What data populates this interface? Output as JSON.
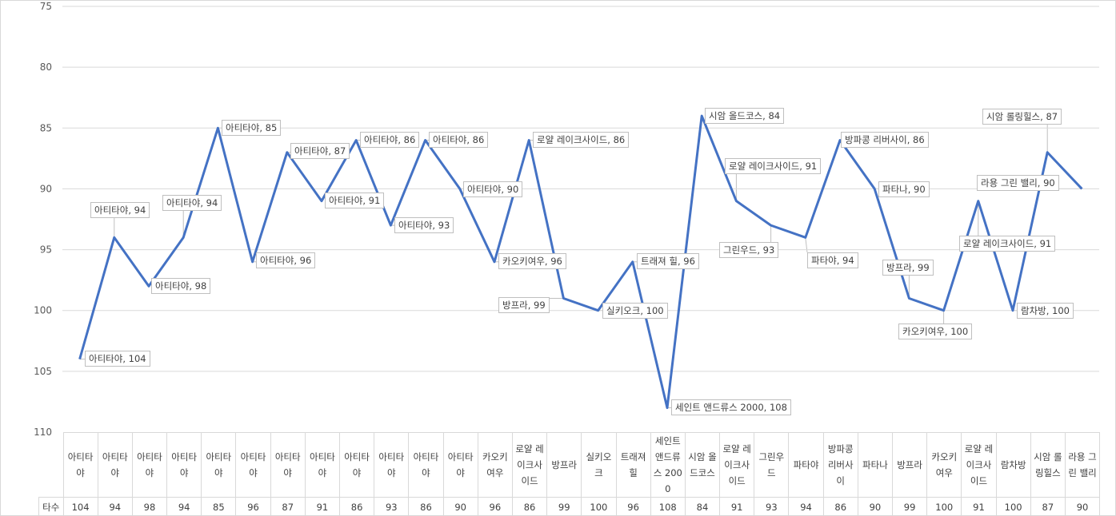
{
  "chart_data": {
    "type": "line",
    "title": "",
    "y_axis": {
      "min": 75,
      "max": 110,
      "step": 5,
      "reversed": true,
      "ticks": [
        75,
        80,
        85,
        90,
        95,
        100,
        105,
        110
      ]
    },
    "grid": true,
    "line_color": "#4472c4",
    "categories": [
      "아티타야",
      "아티타야",
      "아티타야",
      "아티타야",
      "아티타야",
      "아티타야",
      "아티타야",
      "아티타야",
      "아티타야",
      "아티타야",
      "아티타야",
      "아티타야",
      "카오키여우",
      "로얄 레이크사이드",
      "방프라",
      "실키오크",
      "트래져 힐",
      "세인트 앤드류스 2000",
      "시암 올드코스",
      "로얄 레이크사이드",
      "그린우드",
      "파타야",
      "방파콩 리버사이",
      "파타나",
      "방프라",
      "카오키여우",
      "로얄 레이크사이드",
      "람차방",
      "시암 롤링힐스",
      "라용 그린 밸리"
    ],
    "series": [
      {
        "name": "타수",
        "values": [
          104,
          94,
          98,
          94,
          85,
          96,
          87,
          91,
          86,
          93,
          86,
          90,
          96,
          86,
          99,
          100,
          96,
          108,
          84,
          91,
          93,
          94,
          86,
          90,
          99,
          100,
          91,
          100,
          87,
          90
        ]
      }
    ],
    "data_labels": [
      "아티타야, 104",
      "아티타야, 94",
      "아티타야, 98",
      "아티타야, 94",
      "아티타야, 85",
      "아티타야, 96",
      "아티타야, 87",
      "아티타야, 91",
      "아티타야, 86",
      "아티타야, 93",
      "아티타야, 86",
      "아티타야, 90",
      "카오키여우, 96",
      "로얄 레이크사이드, 86",
      "방프라, 99",
      "실키오크, 100",
      "트래져 힐, 96",
      "세인트 앤드류스 2000, 108",
      "시암 올드코스, 84",
      "로얄 레이크사이드, 91",
      "그린우드, 93",
      "파타야, 94",
      "방파콩 리버사이, 86",
      "파타나, 90",
      "방프라, 99",
      "카오키여우, 100",
      "로얄 레이크사이드, 91",
      "람차방, 100",
      "시암 롤링힐스, 87",
      "라용 그린 밸리, 90"
    ],
    "table_series_label": "타수"
  }
}
